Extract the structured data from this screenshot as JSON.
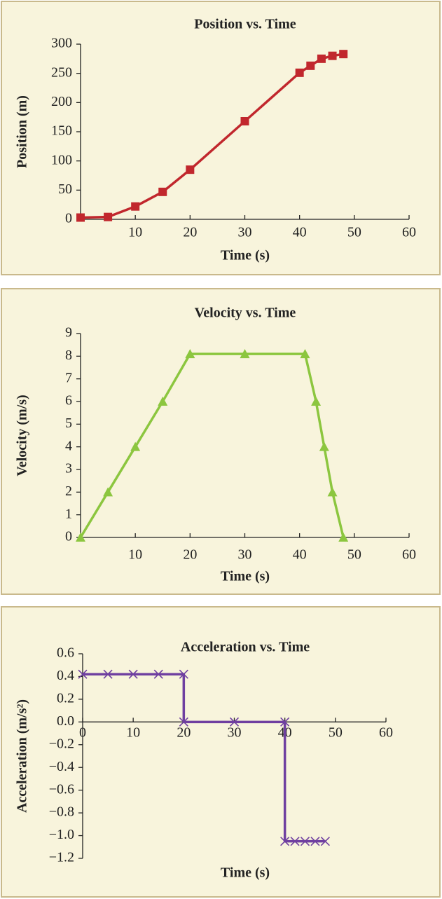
{
  "chart_data": [
    {
      "type": "line",
      "title": "Position vs. Time",
      "x_label": "Time (s)",
      "y_label": "Position (m)",
      "x": [
        0,
        5,
        10,
        15,
        20,
        30,
        40,
        42,
        44,
        46,
        48
      ],
      "values": [
        3,
        4,
        22,
        47,
        85,
        168,
        251,
        263,
        275,
        280,
        283
      ],
      "color": "#c1272d",
      "marker": "square",
      "xlim": [
        0,
        60
      ],
      "xticks": [
        10,
        20,
        30,
        40,
        50,
        60
      ],
      "ylim": [
        0,
        300
      ],
      "yticks": [
        0,
        50,
        100,
        150,
        200,
        250,
        300
      ]
    },
    {
      "type": "line",
      "title": "Velocity vs. Time",
      "x_label": "Time (s)",
      "y_label": "Velocity (m/s)",
      "x": [
        0,
        5,
        10,
        15,
        20,
        30,
        41,
        43,
        44.5,
        46,
        48
      ],
      "values": [
        0,
        2,
        4,
        6,
        8.1,
        8.1,
        8.1,
        6,
        4,
        2,
        0
      ],
      "color": "#8cc63f",
      "marker": "triangle",
      "xlim": [
        0,
        60
      ],
      "xticks": [
        10,
        20,
        30,
        40,
        50,
        60
      ],
      "ylim": [
        0,
        9
      ],
      "yticks": [
        0,
        1,
        2,
        3,
        4,
        5,
        6,
        7,
        8,
        9
      ]
    },
    {
      "type": "line",
      "title": "Acceleration vs. Time",
      "x_label": "Time (s)",
      "y_label": "Acceleration (m/s²)",
      "x": [
        0,
        5,
        10,
        15,
        20,
        20,
        30,
        40,
        40,
        42,
        44,
        46,
        48
      ],
      "values": [
        0.42,
        0.42,
        0.42,
        0.42,
        0.42,
        0,
        0,
        0,
        -1.05,
        -1.05,
        -1.05,
        -1.05,
        -1.05
      ],
      "color": "#6f3fa0",
      "marker": "x",
      "xlim": [
        0,
        60
      ],
      "xticks": [
        0,
        10,
        20,
        30,
        40,
        50,
        60
      ],
      "ylim": [
        -1.2,
        0.6
      ],
      "yticks": [
        0.6,
        0.4,
        0.2,
        {
          "value": 0,
          "label": "0.0"
        },
        {
          "value": -0.2,
          "label": "−0.2"
        },
        {
          "value": -0.4,
          "label": "−0.4"
        },
        {
          "value": -0.6,
          "label": "−0.6"
        },
        {
          "value": -0.8,
          "label": "−0.8"
        },
        {
          "value": -1.0,
          "label": "−1.0"
        },
        {
          "value": -1.2,
          "label": "−1.2"
        }
      ]
    }
  ]
}
